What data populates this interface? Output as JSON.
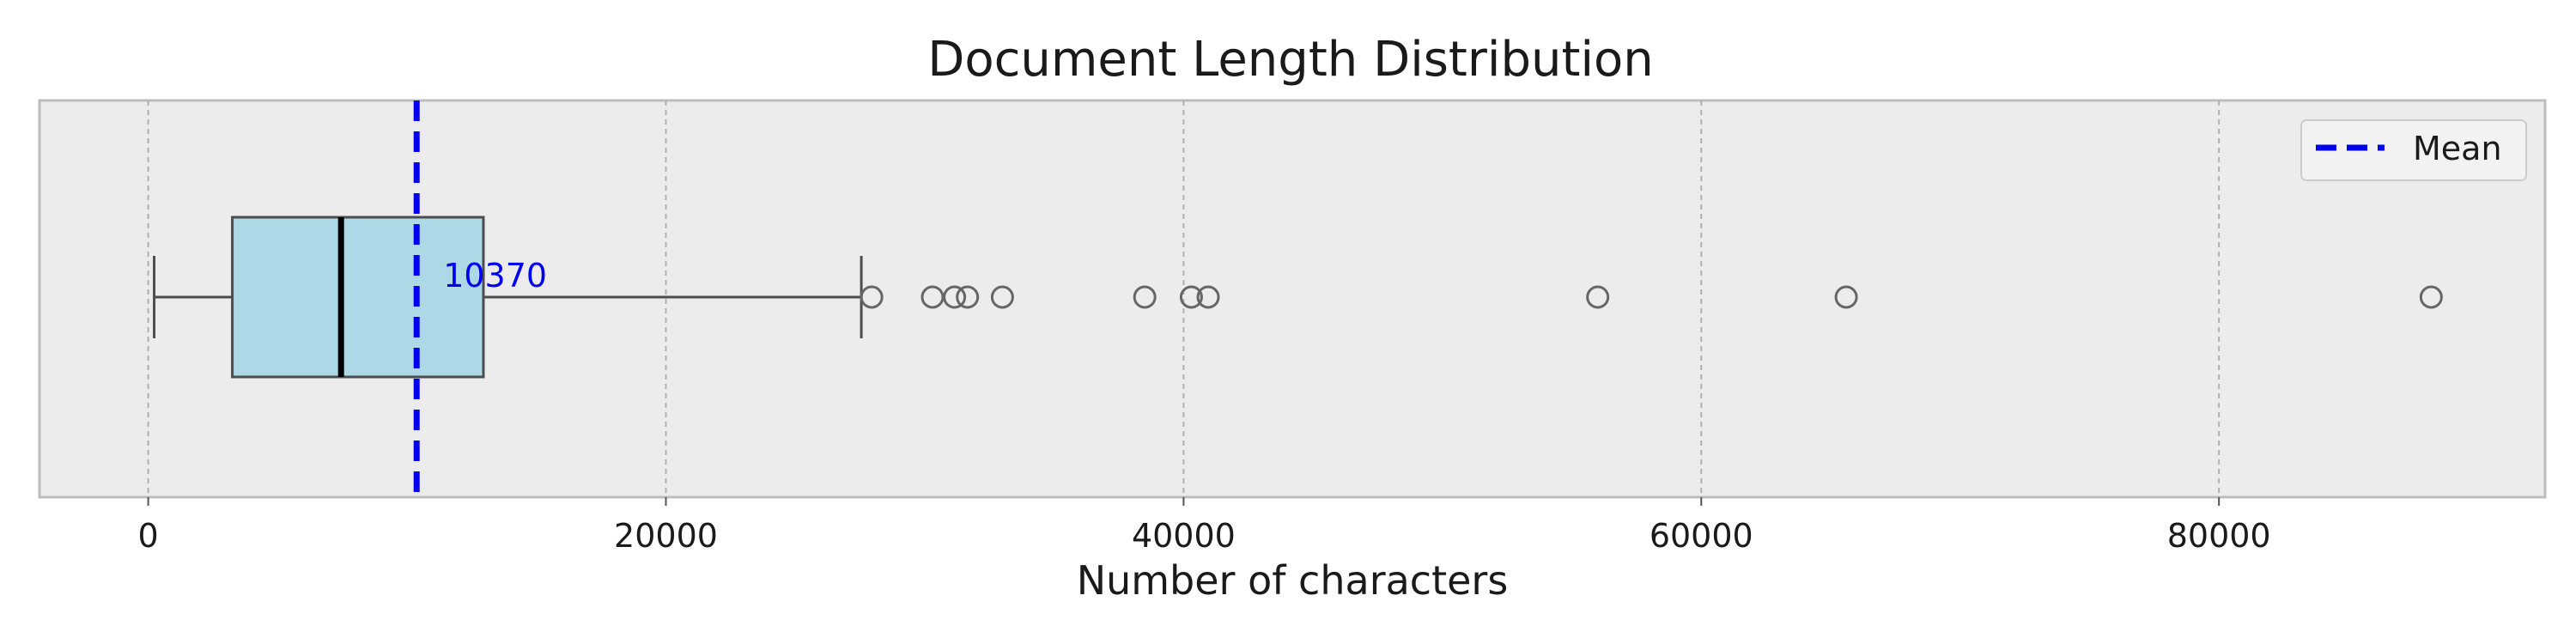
{
  "chart_data": {
    "type": "box",
    "title": "Document Length Distribution",
    "xlabel": "Number of characters",
    "ylabel": "",
    "xlim": [
      -4200,
      92600
    ],
    "xticks": [
      0,
      20000,
      40000,
      60000,
      80000
    ],
    "xtick_labels": [
      "0",
      "20000",
      "40000",
      "60000",
      "80000"
    ],
    "grid": "x-dashed",
    "box": {
      "whisker_low": 230,
      "q1": 3250,
      "median": 7450,
      "q3": 12950,
      "whisker_high": 27550
    },
    "outliers": [
      27950,
      30300,
      31150,
      31650,
      33000,
      38500,
      40300,
      40950,
      56000,
      65600,
      88200
    ],
    "mean": 10370,
    "mean_label": "10370",
    "legend": {
      "position": "top-right",
      "entries": [
        "Mean"
      ]
    },
    "colors": {
      "box_fill": "#add8e6",
      "box_edge": "#4d4d4d",
      "median": "#000000",
      "mean_line": "#0000ee",
      "outlier_edge": "#666666",
      "plot_background": "#ececec",
      "grid": "#b0b0b0"
    }
  }
}
